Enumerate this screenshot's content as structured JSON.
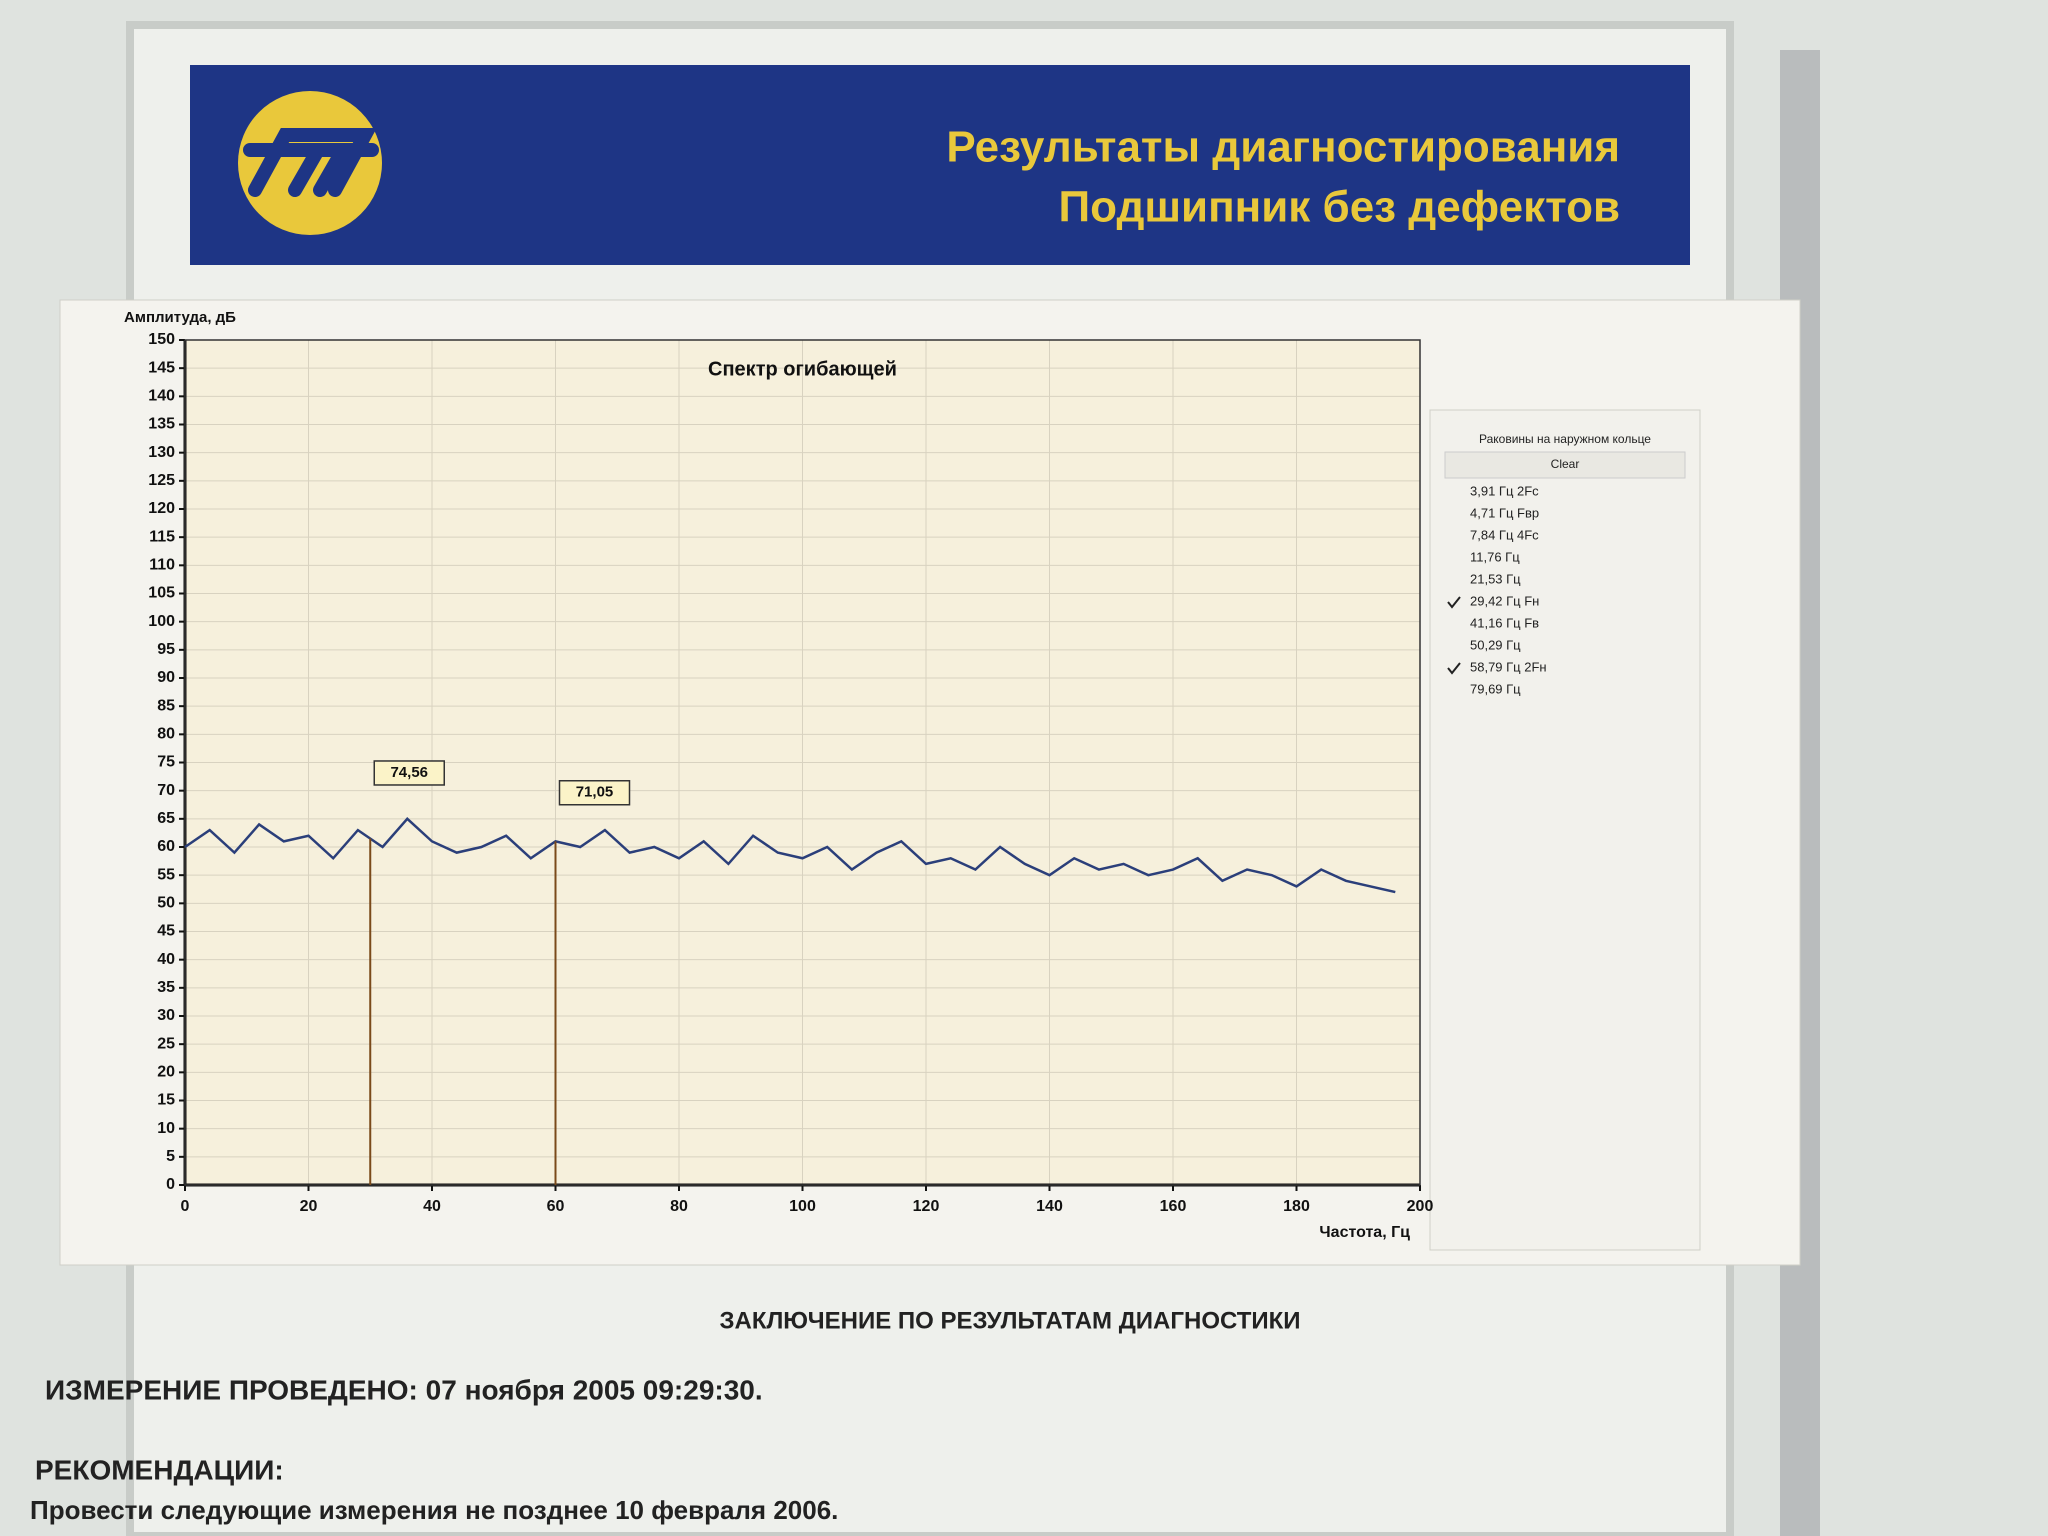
{
  "header": {
    "title_lines": [
      "Результаты диагностирования",
      "Подшипник без дефектов"
    ]
  },
  "chart_data": {
    "type": "line",
    "title": "Спектр огибающей",
    "y_label": "Амплитуда, дБ",
    "x_label": "Частота, Гц",
    "x": [
      0,
      4,
      8,
      12,
      16,
      20,
      24,
      28,
      32,
      36,
      40,
      44,
      48,
      52,
      56,
      60,
      64,
      68,
      72,
      76,
      80,
      84,
      88,
      92,
      96,
      100,
      104,
      108,
      112,
      116,
      120,
      124,
      128,
      132,
      136,
      140,
      144,
      148,
      152,
      156,
      160,
      164,
      168,
      172,
      176,
      180,
      184,
      188,
      192,
      196
    ],
    "series": [
      {
        "color": "#2b3f7a",
        "values": [
          60,
          63,
          59,
          64,
          61,
          62,
          58,
          63,
          60,
          65,
          61,
          59,
          60,
          62,
          58,
          61,
          60,
          63,
          59,
          60,
          58,
          61,
          57,
          62,
          59,
          58,
          60,
          56,
          59,
          61,
          57,
          58,
          56,
          60,
          57,
          55,
          58,
          56,
          57,
          55,
          56,
          58,
          54,
          56,
          55,
          53,
          56,
          54,
          53,
          52
        ]
      }
    ],
    "xlim": [
      0,
      200
    ],
    "xticks": [
      0,
      20,
      40,
      60,
      80,
      100,
      120,
      140,
      160,
      180,
      200
    ],
    "ylim": [
      0,
      150
    ],
    "yticks": [
      0,
      5,
      10,
      15,
      20,
      25,
      30,
      35,
      40,
      45,
      50,
      55,
      60,
      65,
      70,
      75,
      80,
      85,
      90,
      95,
      100,
      105,
      110,
      115,
      120,
      125,
      130,
      135,
      140,
      145,
      150
    ],
    "grid": true,
    "markers": [
      {
        "x": 30,
        "value": 74.56,
        "label": "74,56"
      },
      {
        "x": 60,
        "value": 71.05,
        "label": "71,05"
      }
    ]
  },
  "legend_panel": {
    "title": "Раковины на наружном кольце",
    "button": "Clear",
    "items": [
      {
        "label": "3,91 Гц 2Fc",
        "checked": false
      },
      {
        "label": "4,71 Гц Fвр",
        "checked": false
      },
      {
        "label": "7,84 Гц 4Fc",
        "checked": false
      },
      {
        "label": "11,76 Гц",
        "checked": false
      },
      {
        "label": "21,53 Гц",
        "checked": false
      },
      {
        "label": "29,42 Гц Fн",
        "checked": true
      },
      {
        "label": "41,16 Гц Fв",
        "checked": false
      },
      {
        "label": "50,29 Гц",
        "checked": false
      },
      {
        "label": "58,79 Гц 2Fн",
        "checked": true
      },
      {
        "label": "79,69 Гц",
        "checked": false
      }
    ]
  },
  "conclusion": {
    "heading": "ЗАКЛЮЧЕНИЕ ПО РЕЗУЛЬТАТАМ ДИАГНОСТИКИ",
    "measurement": "ИЗМЕРЕНИЕ ПРОВЕДЕНО: 07 ноября 2005  09:29:30.",
    "recommendations_heading": "РЕКОМЕНДАЦИИ:",
    "recommendations": "Провести следующие измерения не позднее 10 февраля 2006."
  }
}
